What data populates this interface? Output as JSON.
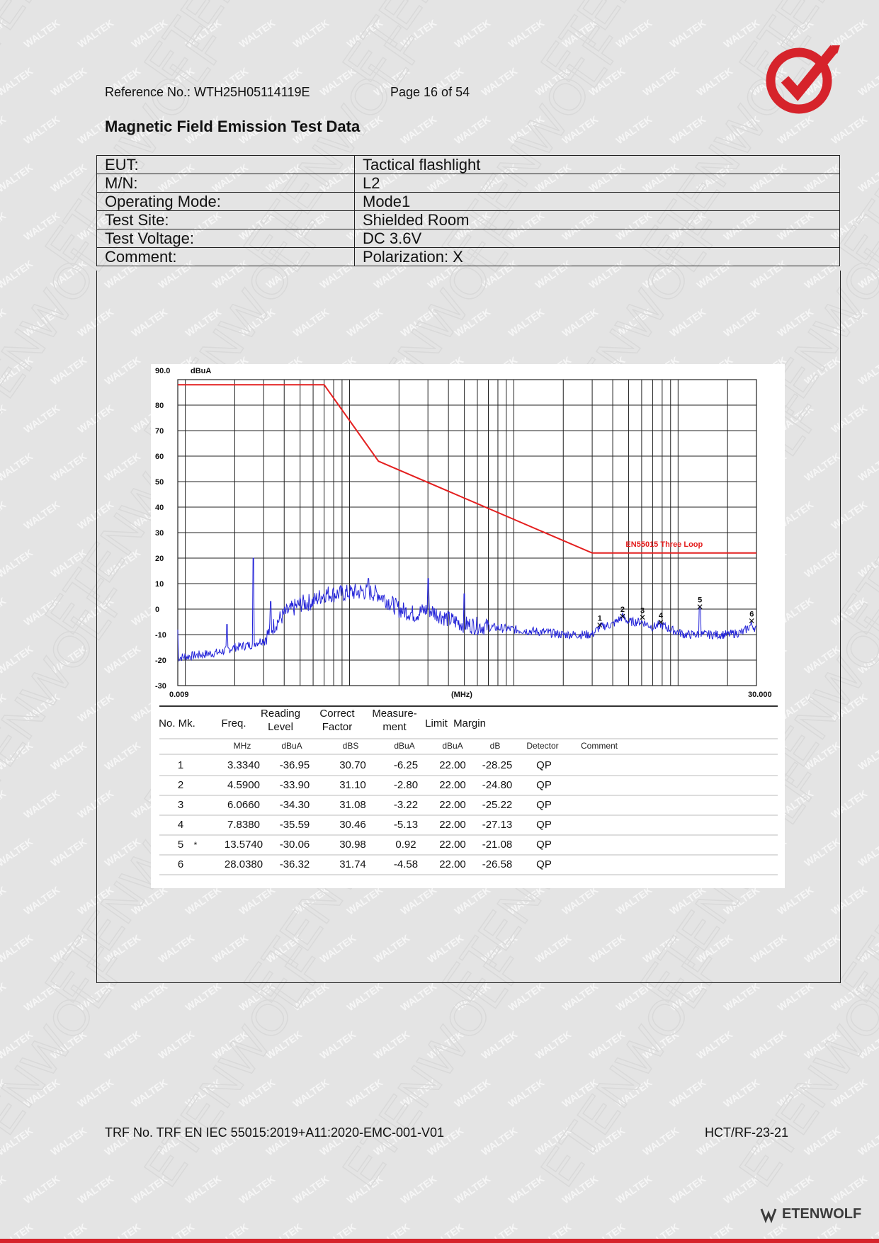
{
  "document": {
    "reference": "Reference No.: WTH25H05114119E",
    "page": "Page 16 of 54",
    "title": "Magnetic Field Emission Test Data",
    "trf": "TRF No. TRF EN IEC 55015:2019+A11:2020-EMC-001-V01",
    "form_code": "HCT/RF-23-21",
    "brand": "ETENWOLF",
    "watermarks": [
      "WALTEK",
      "ETENWOLF"
    ],
    "accent_color": "#d6232b"
  },
  "info_rows": [
    {
      "key": "EUT:",
      "value": "Tactical flashlight"
    },
    {
      "key": "M/N:",
      "value": "L2"
    },
    {
      "key": "Operating Mode:",
      "value": "Mode1"
    },
    {
      "key": "Test Site:",
      "value": "Shielded Room"
    },
    {
      "key": "Test Voltage:",
      "value": "DC 3.6V"
    },
    {
      "key": "Comment:",
      "value": "Polarization: X"
    }
  ],
  "chart_data": {
    "type": "line",
    "ylabel": "dBuA",
    "xlabel": "(MHz)",
    "x_scale": "log",
    "xlim": [
      0.009,
      30.0
    ],
    "ylim": [
      -30,
      90
    ],
    "y_ticks": [
      "90.0",
      "80",
      "70",
      "60",
      "50",
      "40",
      "30",
      "20",
      "10",
      "0",
      "-10",
      "-20",
      "-30"
    ],
    "x_tick_labels": {
      "min": "0.009",
      "max": "30.000"
    },
    "limit_label": "EN55015 Three Loop",
    "limit_color": "#e41e1e",
    "trace_color": "#2323d8",
    "limit_line": {
      "x": [
        0.009,
        0.07,
        0.15,
        3.0,
        30.0
      ],
      "y": [
        88,
        88,
        58,
        22,
        22
      ]
    },
    "trace_anchor_points": {
      "x": [
        0.009,
        0.012,
        0.016,
        0.02,
        0.025,
        0.03,
        0.035,
        0.04,
        0.05,
        0.06,
        0.07,
        0.09,
        0.12,
        0.15,
        0.2,
        0.25,
        0.3,
        0.4,
        0.5,
        0.7,
        1.0,
        1.5,
        2.0,
        2.5,
        3.0,
        3.334,
        4.0,
        4.59,
        5.0,
        6.066,
        7.0,
        7.838,
        9.0,
        11.0,
        13.574,
        15.0,
        20.0,
        25.0,
        28.038,
        30.0
      ],
      "y": [
        -19,
        -18,
        -17,
        -15,
        -14,
        -12,
        -6,
        -2,
        2,
        3,
        6,
        6,
        7,
        6,
        0,
        -2,
        0,
        -4,
        -6,
        -7,
        -8,
        -9,
        -10,
        -10,
        -10,
        -7,
        -6,
        -3,
        -5,
        -5,
        -7,
        -6,
        -8,
        -10,
        -10,
        -10,
        -10,
        -9,
        -6,
        -8
      ]
    },
    "trace_spikes": [
      {
        "x": 0.026,
        "y": 20
      },
      {
        "x": 0.018,
        "y": -6
      },
      {
        "x": 0.033,
        "y": 3
      },
      {
        "x": 0.13,
        "y": 12
      },
      {
        "x": 0.3,
        "y": 12
      },
      {
        "x": 0.5,
        "y": 6
      },
      {
        "x": 13.574,
        "y": 1
      }
    ],
    "markers": [
      {
        "label": "1",
        "x": 3.334,
        "y": -6.25
      },
      {
        "label": "2",
        "x": 4.59,
        "y": -2.8
      },
      {
        "label": "3",
        "x": 6.066,
        "y": -3.22
      },
      {
        "label": "4",
        "x": 7.838,
        "y": -5.13
      },
      {
        "label": "5",
        "x": 13.574,
        "y": 0.92
      },
      {
        "label": "6",
        "x": 28.038,
        "y": -4.58
      }
    ]
  },
  "results_table": {
    "headers": [
      "No. Mk.",
      "Freq.",
      "Reading Level",
      "Correct Factor",
      "Measure-ment",
      "Limit",
      "Margin"
    ],
    "header_top": [
      "",
      "",
      "Reading",
      "Correct",
      "Measure-",
      "",
      ""
    ],
    "header_bottom": [
      "No. Mk.",
      "Freq.",
      "Level",
      "Factor",
      "ment",
      "Limit",
      "Margin"
    ],
    "units": [
      "",
      "MHz",
      "dBuA",
      "dBS",
      "dBuA",
      "dBuA",
      "dB",
      "Detector",
      "Comment"
    ],
    "rows": [
      {
        "no": "1",
        "mk": "",
        "freq": "3.3340",
        "reading": "-36.95",
        "factor": "30.70",
        "measure": "-6.25",
        "limit": "22.00",
        "margin": "-28.25",
        "detector": "QP"
      },
      {
        "no": "2",
        "mk": "",
        "freq": "4.5900",
        "reading": "-33.90",
        "factor": "31.10",
        "measure": "-2.80",
        "limit": "22.00",
        "margin": "-24.80",
        "detector": "QP"
      },
      {
        "no": "3",
        "mk": "",
        "freq": "6.0660",
        "reading": "-34.30",
        "factor": "31.08",
        "measure": "-3.22",
        "limit": "22.00",
        "margin": "-25.22",
        "detector": "QP"
      },
      {
        "no": "4",
        "mk": "",
        "freq": "7.8380",
        "reading": "-35.59",
        "factor": "30.46",
        "measure": "-5.13",
        "limit": "22.00",
        "margin": "-27.13",
        "detector": "QP"
      },
      {
        "no": "5",
        "mk": "*",
        "freq": "13.5740",
        "reading": "-30.06",
        "factor": "30.98",
        "measure": "0.92",
        "limit": "22.00",
        "margin": "-21.08",
        "detector": "QP"
      },
      {
        "no": "6",
        "mk": "",
        "freq": "28.0380",
        "reading": "-36.32",
        "factor": "31.74",
        "measure": "-4.58",
        "limit": "22.00",
        "margin": "-26.58",
        "detector": "QP"
      }
    ]
  }
}
